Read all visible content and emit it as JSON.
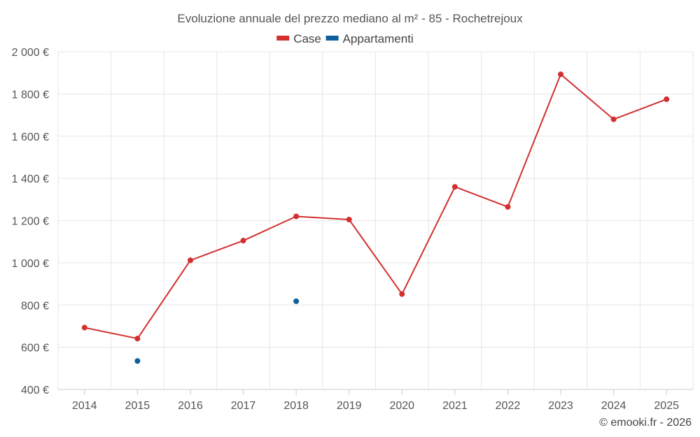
{
  "chart_data": {
    "type": "line",
    "title": "Evoluzione annuale del prezzo mediano al m² - 85 - Rochetrejoux",
    "categories": [
      "2014",
      "2015",
      "2016",
      "2017",
      "2018",
      "2019",
      "2020",
      "2021",
      "2022",
      "2023",
      "2024",
      "2025"
    ],
    "ylim": [
      400,
      2000
    ],
    "yticks": [
      400,
      600,
      800,
      1000,
      1200,
      1400,
      1600,
      1800,
      2000
    ],
    "ytick_labels": [
      "400 €",
      "600 €",
      "800 €",
      "1 000 €",
      "1 200 €",
      "1 400 €",
      "1 600 €",
      "1 800 €",
      "2 000 €"
    ],
    "grid": true,
    "legend_position": "top-center",
    "series": [
      {
        "name": "Case",
        "color": "#d32f2f",
        "values": [
          693,
          641,
          1012,
          1105,
          1220,
          1205,
          852,
          1360,
          1265,
          1893,
          1680,
          1775
        ]
      },
      {
        "name": "Appartamenti",
        "color": "#0f5f9a",
        "values": [
          null,
          535,
          null,
          null,
          818,
          null,
          null,
          null,
          null,
          null,
          null,
          null
        ]
      }
    ],
    "credit": "© emooki.fr - 2026"
  }
}
